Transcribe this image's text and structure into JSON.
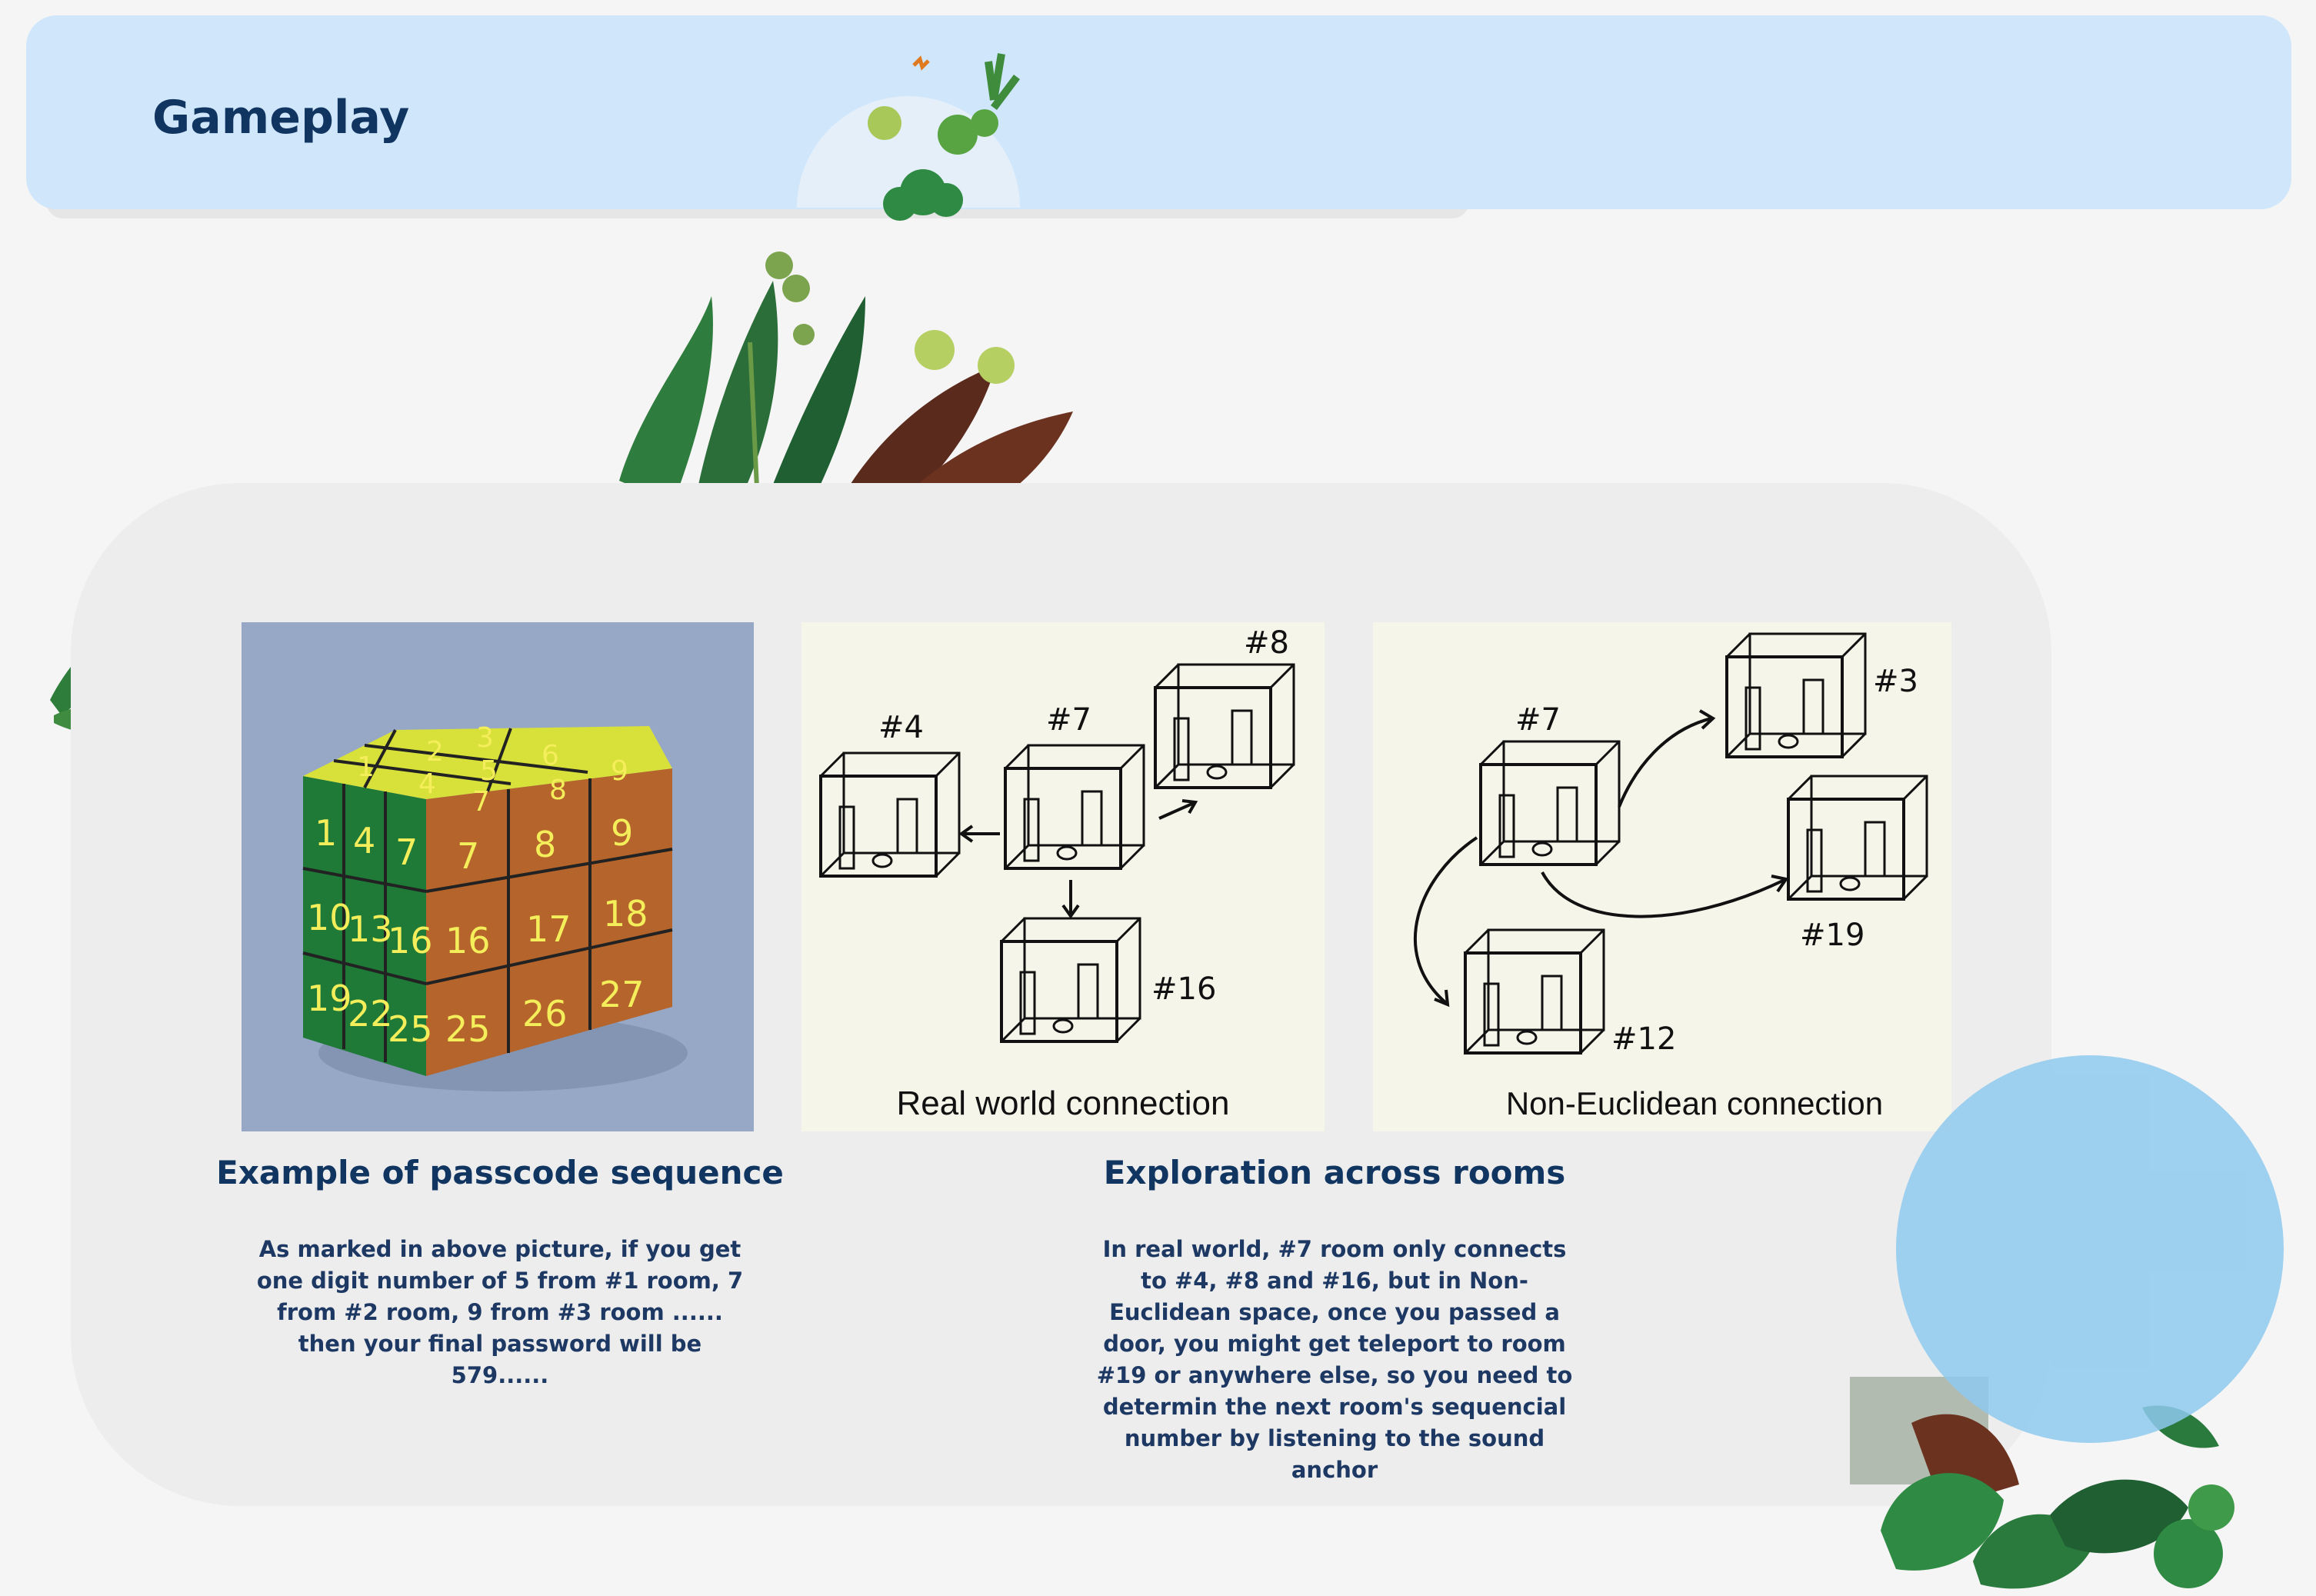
{
  "header": {
    "title": "Gameplay"
  },
  "images": {
    "cube": {
      "digits_top": [
        "1",
        "2",
        "3",
        "4",
        "5",
        "6",
        "7",
        "8",
        "9"
      ],
      "digits_front": [
        "1",
        "4",
        "7",
        "10",
        "13",
        "16",
        "19",
        "22",
        "25"
      ],
      "digits_side": [
        "7",
        "8",
        "9",
        "16",
        "17",
        "18",
        "25",
        "26",
        "27"
      ]
    },
    "real_world": {
      "label": "Real world connection",
      "rooms": [
        "#4",
        "#7",
        "#8",
        "#16"
      ]
    },
    "non_euclidean": {
      "label": "Non-Euclidean connection",
      "rooms": [
        "#7",
        "#3",
        "#19",
        "#12"
      ]
    }
  },
  "sections": [
    {
      "title": "Example of passcode sequence",
      "text": "As marked in above picture, if you get one digit number of 5 from #1 room,  7 from #2 room, 9 from #3 room ...... then your final password will be 579......"
    },
    {
      "title": "Exploration across rooms",
      "text": "In real world, #7 room only connects to #4, #8 and #16, but in Non-Euclidean space, once you passed a door, you might get teleport to room #19 or anywhere else, so you need to determin the next room's sequencial number by listening to the sound anchor"
    }
  ],
  "colors": {
    "header_bg": "#cfe6fb",
    "title": "#113561",
    "panel_bg": "#ededed",
    "accent_circle": "#8ec9ee"
  }
}
